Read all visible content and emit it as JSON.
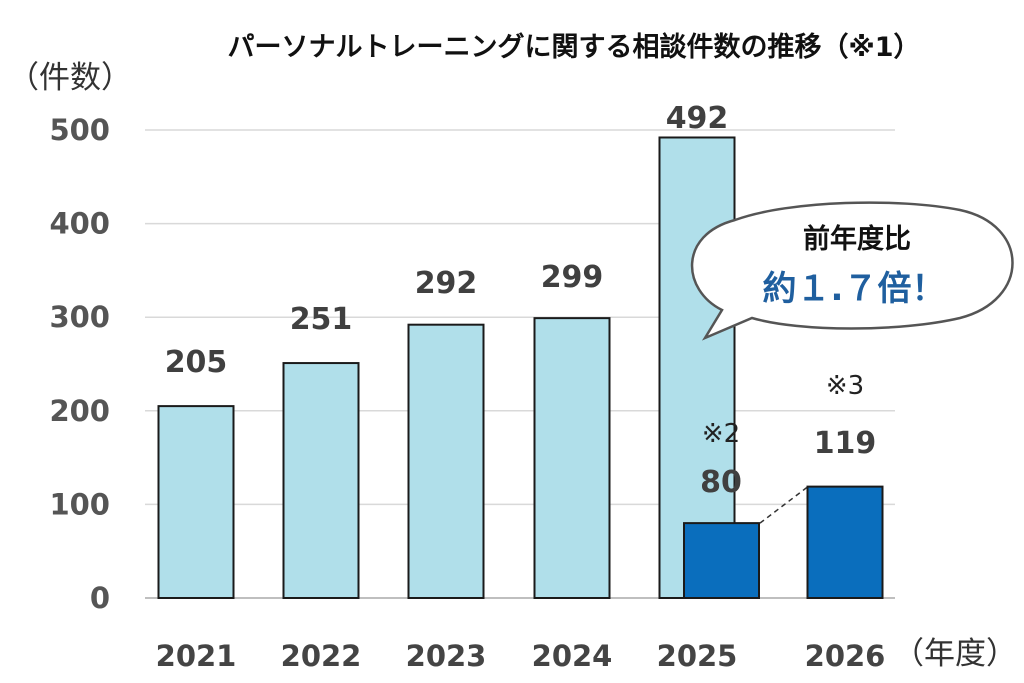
{
  "chart_data": {
    "type": "bar",
    "title": "パーソナルトレーニングに関する相談件数の推移（※1）",
    "ylabel": "（件数）",
    "xlabel": "（年度）",
    "ylim": [
      0,
      500
    ],
    "yticks": [
      "0",
      "100",
      "200",
      "300",
      "400",
      "500"
    ],
    "grid": true,
    "categories": [
      "2021",
      "2022",
      "2023",
      "2024",
      "2025",
      "2026"
    ],
    "series": [
      {
        "values": [
          205,
          251,
          292,
          299,
          492,
          null
        ],
        "color": "#b0dfea"
      },
      {
        "values": [
          null,
          null,
          null,
          null,
          80,
          119
        ],
        "color": "#0a6ebd"
      }
    ],
    "data_labels": [
      "205",
      "251",
      "292",
      "299",
      "492",
      "80",
      "119"
    ],
    "notes": {
      "bar_2025_dark": "※2",
      "bar_2026": "※3"
    },
    "callout": {
      "line1": "前年度比",
      "line2": "約１.７倍！"
    }
  }
}
